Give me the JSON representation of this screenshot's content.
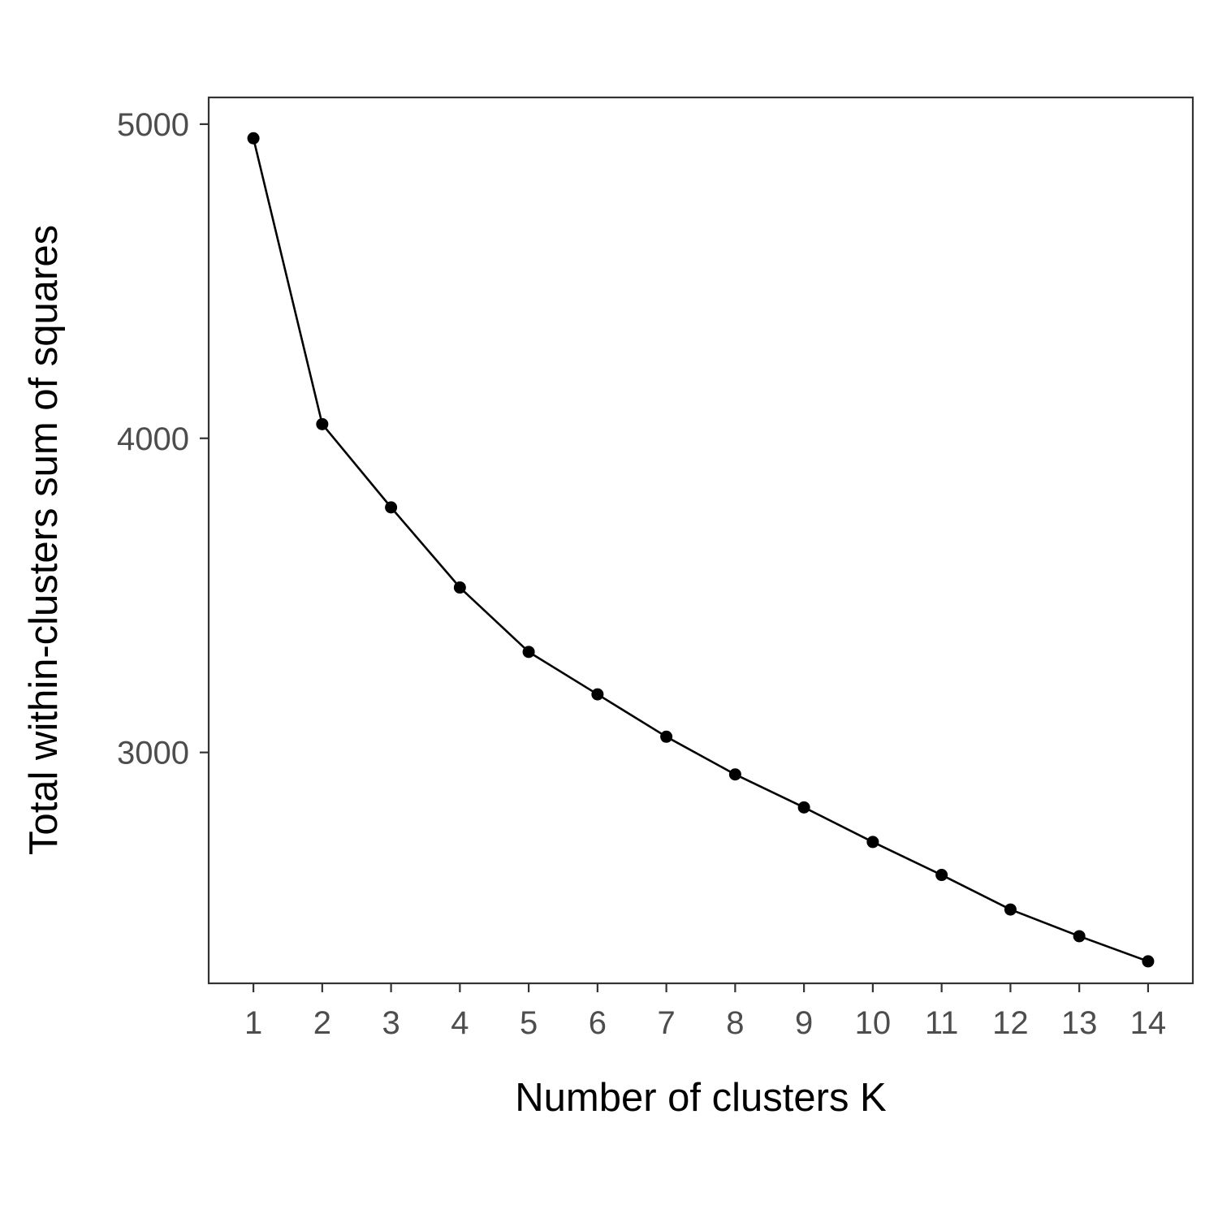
{
  "chart_data": {
    "type": "line",
    "title": "",
    "xlabel": "Number of clusters K",
    "ylabel": "Total within-clusters sum of squares",
    "x": [
      1,
      2,
      3,
      4,
      5,
      6,
      7,
      8,
      9,
      10,
      11,
      12,
      13,
      14
    ],
    "x_tick_labels": [
      "1",
      "2",
      "3",
      "4",
      "5",
      "6",
      "7",
      "8",
      "9",
      "10",
      "11",
      "12",
      "13",
      "14"
    ],
    "y_ticks": [
      3000,
      4000,
      5000
    ],
    "y_tick_labels": [
      "3000",
      "4000",
      "5000"
    ],
    "series": [
      {
        "values": [
          4955,
          4045,
          3780,
          3525,
          3320,
          3185,
          3050,
          2930,
          2825,
          2715,
          2610,
          2500,
          2415,
          2335
        ]
      }
    ],
    "xlim": [
      0.35,
      14.65
    ],
    "ylim": [
      2265,
      5085
    ],
    "grid": false,
    "legend": "none",
    "colors": {
      "line": "#000000",
      "point": "#000000",
      "panel_border": "#333333",
      "tick": "#333333",
      "tick_label": "#4d4d4d"
    }
  }
}
